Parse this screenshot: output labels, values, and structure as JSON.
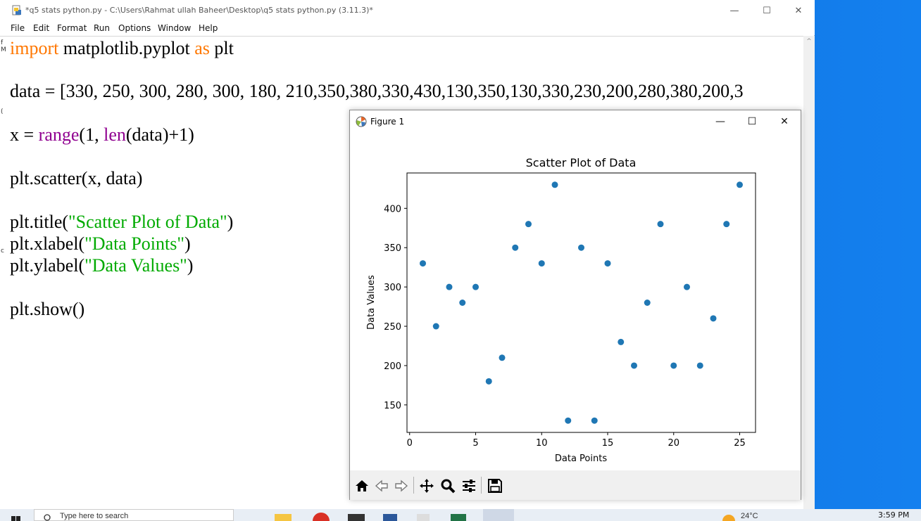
{
  "editor_window": {
    "title": "*q5 stats python.py - C:\\Users\\Rahmat ullah Baheer\\Desktop\\q5 stats python.py (3.11.3)*",
    "minimize": "—",
    "maximize": "☐",
    "close": "✕",
    "menu": [
      "File",
      "Edit",
      "Format",
      "Run",
      "Options",
      "Window",
      "Help"
    ],
    "code": {
      "line1": {
        "kw1": "import",
        "t1": " matplotlib.pyplot ",
        "kw2": "as",
        "t2": " plt"
      },
      "line2": "data = [330, 250, 300, 280, 300, 180, 210,350,380,330,430,130,350,130,330,230,200,280,380,200,3",
      "line3": {
        "t1": "x = ",
        "b1": "range",
        "t2": "(1, ",
        "b2": "len",
        "t3": "(data)+1)"
      },
      "line4": "plt.scatter(x, data)",
      "line5": {
        "t1": "plt.title(",
        "s": "\"Scatter Plot of Data\"",
        "t2": ")"
      },
      "line6": {
        "t1": "plt.xlabel(",
        "s": "\"Data Points\"",
        "t2": ")"
      },
      "line7": {
        "t1": "plt.ylabel(",
        "s": "\"Data Values\"",
        "t2": ")"
      },
      "line8": "plt.show()"
    },
    "gutter": [
      "f",
      "M",
      "(",
      "c"
    ],
    "scroll_up": "^"
  },
  "figure_window": {
    "title": "Figure 1",
    "minimize": "—",
    "maximize": "☐",
    "close": "✕",
    "toolbar": [
      "home-icon",
      "back-icon",
      "forward-icon",
      "pan-icon",
      "zoom-icon",
      "configure-icon",
      "save-icon"
    ]
  },
  "chart_data": {
    "type": "scatter",
    "title": "Scatter Plot of Data",
    "xlabel": "Data Points",
    "ylabel": "Data Values",
    "x": [
      1,
      2,
      3,
      4,
      5,
      6,
      7,
      8,
      9,
      10,
      11,
      12,
      13,
      14,
      15,
      16,
      17,
      18,
      19,
      20,
      21,
      22,
      23,
      24,
      25
    ],
    "y": [
      330,
      250,
      300,
      280,
      300,
      180,
      210,
      350,
      380,
      330,
      430,
      130,
      350,
      130,
      330,
      230,
      200,
      280,
      380,
      200,
      300,
      200,
      260,
      380,
      430
    ],
    "xlim": [
      -0.2,
      26.2
    ],
    "ylim": [
      115,
      445
    ],
    "xticks": [
      0,
      5,
      10,
      15,
      20,
      25
    ],
    "yticks": [
      150,
      200,
      250,
      300,
      350,
      400
    ],
    "marker_color": "#1f77b4",
    "grid": false
  },
  "taskbar": {
    "search_placeholder": "Type here to search",
    "weather": "24°C",
    "time": "3:59 PM"
  }
}
